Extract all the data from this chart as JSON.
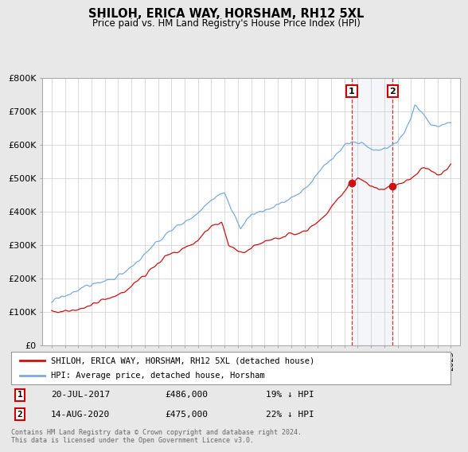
{
  "title": "SHILOH, ERICA WAY, HORSHAM, RH12 5XL",
  "subtitle": "Price paid vs. HM Land Registry's House Price Index (HPI)",
  "ylim": [
    0,
    800000
  ],
  "yticks": [
    0,
    100000,
    200000,
    300000,
    400000,
    500000,
    600000,
    700000,
    800000
  ],
  "ytick_labels": [
    "£0",
    "£100K",
    "£200K",
    "£300K",
    "£400K",
    "£500K",
    "£600K",
    "£700K",
    "£800K"
  ],
  "bg_color": "#e8e8e8",
  "plot_bg_color": "#ffffff",
  "grid_color": "#cccccc",
  "hpi_color": "#7aaadd",
  "price_color": "#cc1111",
  "sale1_date": 2017.55,
  "sale1_price": 486000,
  "sale2_date": 2020.62,
  "sale2_price": 475000,
  "legend_label1": "SHILOH, ERICA WAY, HORSHAM, RH12 5XL (detached house)",
  "legend_label2": "HPI: Average price, detached house, Horsham",
  "annotation1_date": "20-JUL-2017",
  "annotation1_price": "£486,000",
  "annotation1_hpi": "19% ↓ HPI",
  "annotation2_date": "14-AUG-2020",
  "annotation2_price": "£475,000",
  "annotation2_hpi": "22% ↓ HPI",
  "footer": "Contains HM Land Registry data © Crown copyright and database right 2024.\nThis data is licensed under the Open Government Licence v3.0."
}
